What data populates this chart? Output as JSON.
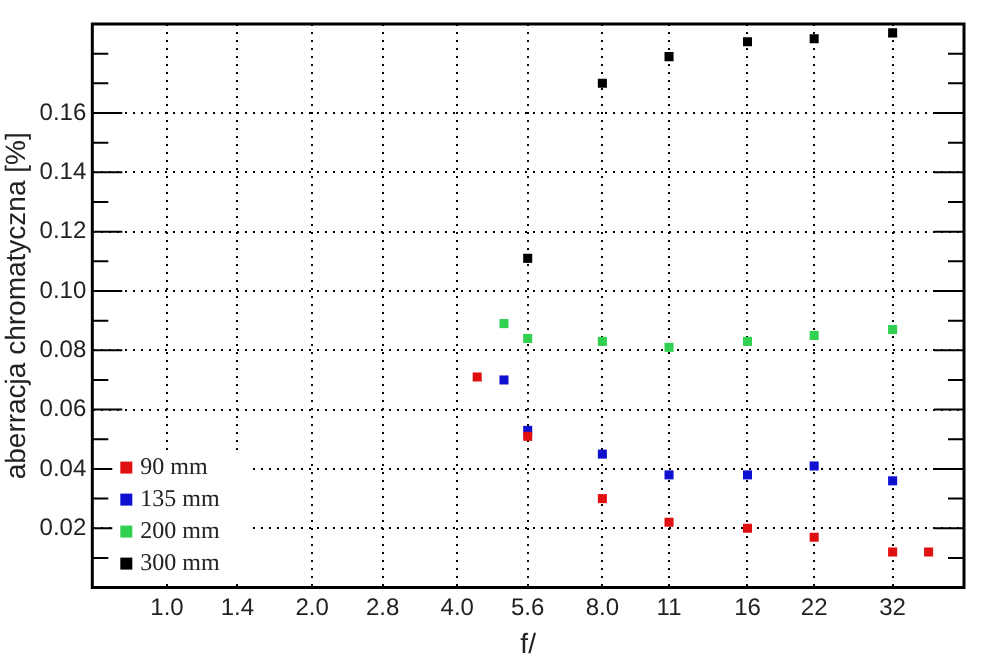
{
  "chart_data": {
    "type": "scatter",
    "xlabel": "f/",
    "ylabel": "aberracja chromatyczna [%]",
    "log": "x",
    "xlim": [
      0.7,
      45
    ],
    "ylim": [
      0,
      0.19
    ],
    "xticks": [
      {
        "value": 1,
        "label": "1.0"
      },
      {
        "value": 1.4,
        "label": "1.4"
      },
      {
        "value": 2,
        "label": "2.0"
      },
      {
        "value": 2.8,
        "label": "2.8"
      },
      {
        "value": 4,
        "label": "4.0"
      },
      {
        "value": 5.6,
        "label": "5.6"
      },
      {
        "value": 8,
        "label": "8.0"
      },
      {
        "value": 11,
        "label": "11"
      },
      {
        "value": 16,
        "label": "16"
      },
      {
        "value": 22,
        "label": "22"
      },
      {
        "value": 32,
        "label": "32"
      }
    ],
    "yticks": [
      {
        "value": 0.01,
        "label": null
      },
      {
        "value": 0.02,
        "label": "0.02"
      },
      {
        "value": 0.03,
        "label": null
      },
      {
        "value": 0.04,
        "label": "0.04"
      },
      {
        "value": 0.05,
        "label": null
      },
      {
        "value": 0.06,
        "label": "0.06"
      },
      {
        "value": 0.07,
        "label": null
      },
      {
        "value": 0.08,
        "label": "0.08"
      },
      {
        "value": 0.09,
        "label": null
      },
      {
        "value": 0.1,
        "label": "0.10"
      },
      {
        "value": 0.11,
        "label": null
      },
      {
        "value": 0.12,
        "label": "0.12"
      },
      {
        "value": 0.13,
        "label": null
      },
      {
        "value": 0.14,
        "label": "0.14"
      },
      {
        "value": 0.15,
        "label": null
      },
      {
        "value": 0.16,
        "label": "0.16"
      },
      {
        "value": 0.17,
        "label": null
      },
      {
        "value": 0.18,
        "label": null
      }
    ],
    "grid": true,
    "legend": "bottom left",
    "marker": "square",
    "series": [
      {
        "name": "90 mm",
        "color": "#e01010",
        "x": [
          4.4,
          5.6,
          8,
          11,
          16,
          22,
          32,
          38
        ],
        "values": [
          0.071,
          0.051,
          0.03,
          0.022,
          0.02,
          0.017,
          0.012,
          0.012
        ]
      },
      {
        "name": "135 mm",
        "color": "#1010d0",
        "x": [
          5,
          5.6,
          8,
          11,
          16,
          22,
          32
        ],
        "values": [
          0.07,
          0.053,
          0.045,
          0.038,
          0.038,
          0.041,
          0.036
        ]
      },
      {
        "name": "200 mm",
        "color": "#30d050",
        "x": [
          5,
          5.6,
          8,
          11,
          16,
          22,
          32
        ],
        "values": [
          0.089,
          0.084,
          0.083,
          0.081,
          0.083,
          0.085,
          0.087
        ]
      },
      {
        "name": "300 mm",
        "color": "#000000",
        "x": [
          5.6,
          8,
          11,
          16,
          22,
          32
        ],
        "values": [
          0.111,
          0.17,
          0.179,
          0.184,
          0.185,
          0.187
        ]
      }
    ]
  }
}
